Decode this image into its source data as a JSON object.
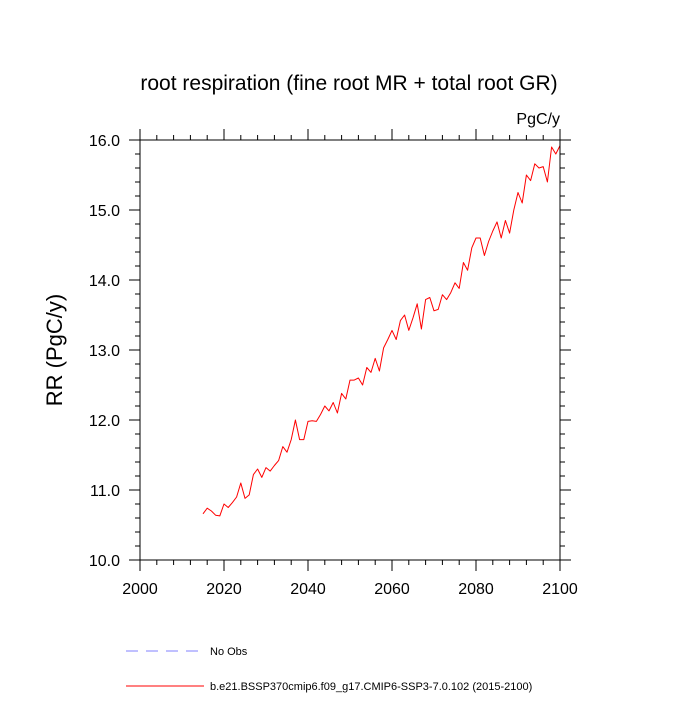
{
  "chart_data": {
    "type": "line",
    "title": "root respiration (fine root MR + total root GR)",
    "units_label": "PgC/y",
    "ylabel": "RR  (PgC/y)",
    "xlabel": "",
    "xlim": [
      2000,
      2100
    ],
    "ylim": [
      10.0,
      16.0
    ],
    "x_ticks": [
      2000,
      2020,
      2040,
      2060,
      2080,
      2100
    ],
    "x_tick_labels": [
      "2000",
      "2020",
      "2040",
      "2060",
      "2080",
      "2100"
    ],
    "y_ticks": [
      10.0,
      11.0,
      12.0,
      13.0,
      14.0,
      15.0,
      16.0
    ],
    "y_tick_labels": [
      "10.0",
      "11.0",
      "12.0",
      "13.0",
      "14.0",
      "15.0",
      "16.0"
    ],
    "grid": false,
    "legend_position": "bottom",
    "legend": [
      {
        "label": "No Obs",
        "style": "dashed",
        "color": "#8080ff"
      },
      {
        "label": "b.e21.BSSP370cmip6.f09_g17.CMIP6-SSP3-7.0.102 (2015-2100)",
        "style": "solid",
        "color": "#ff0000"
      }
    ],
    "series": [
      {
        "name": "b.e21.BSSP370cmip6.f09_g17.CMIP6-SSP3-7.0.102 (2015-2100)",
        "color": "#ff0000",
        "x": [
          2015,
          2016,
          2017,
          2018,
          2019,
          2020,
          2021,
          2022,
          2023,
          2024,
          2025,
          2026,
          2027,
          2028,
          2029,
          2030,
          2031,
          2032,
          2033,
          2034,
          2035,
          2036,
          2037,
          2038,
          2039,
          2040,
          2041,
          2042,
          2043,
          2044,
          2045,
          2046,
          2047,
          2048,
          2049,
          2050,
          2051,
          2052,
          2053,
          2054,
          2055,
          2056,
          2057,
          2058,
          2059,
          2060,
          2061,
          2062,
          2063,
          2064,
          2065,
          2066,
          2067,
          2068,
          2069,
          2070,
          2071,
          2072,
          2073,
          2074,
          2075,
          2076,
          2077,
          2078,
          2079,
          2080,
          2081,
          2082,
          2083,
          2084,
          2085,
          2086,
          2087,
          2088,
          2089,
          2090,
          2091,
          2092,
          2093,
          2094,
          2095,
          2096,
          2097,
          2098,
          2099,
          2100
        ],
        "values": [
          10.66,
          10.74,
          10.7,
          10.64,
          10.63,
          10.8,
          10.75,
          10.82,
          10.9,
          11.1,
          10.88,
          10.93,
          11.22,
          11.3,
          11.18,
          11.32,
          11.27,
          11.35,
          11.42,
          11.62,
          11.54,
          11.72,
          12.0,
          11.72,
          11.72,
          11.98,
          11.99,
          11.98,
          12.08,
          12.2,
          12.13,
          12.25,
          12.1,
          12.38,
          12.3,
          12.57,
          12.57,
          12.6,
          12.5,
          12.75,
          12.68,
          12.88,
          12.7,
          13.03,
          13.15,
          13.28,
          13.15,
          13.42,
          13.5,
          13.28,
          13.46,
          13.66,
          13.3,
          13.72,
          13.75,
          13.56,
          13.58,
          13.79,
          13.72,
          13.82,
          13.96,
          13.88,
          14.25,
          14.14,
          14.46,
          14.6,
          14.6,
          14.35,
          14.55,
          14.7,
          14.83,
          14.6,
          14.85,
          14.67,
          15.0,
          15.25,
          15.1,
          15.5,
          15.42,
          15.66,
          15.6,
          15.62,
          15.4,
          15.9,
          15.8,
          15.92
        ]
      }
    ]
  }
}
